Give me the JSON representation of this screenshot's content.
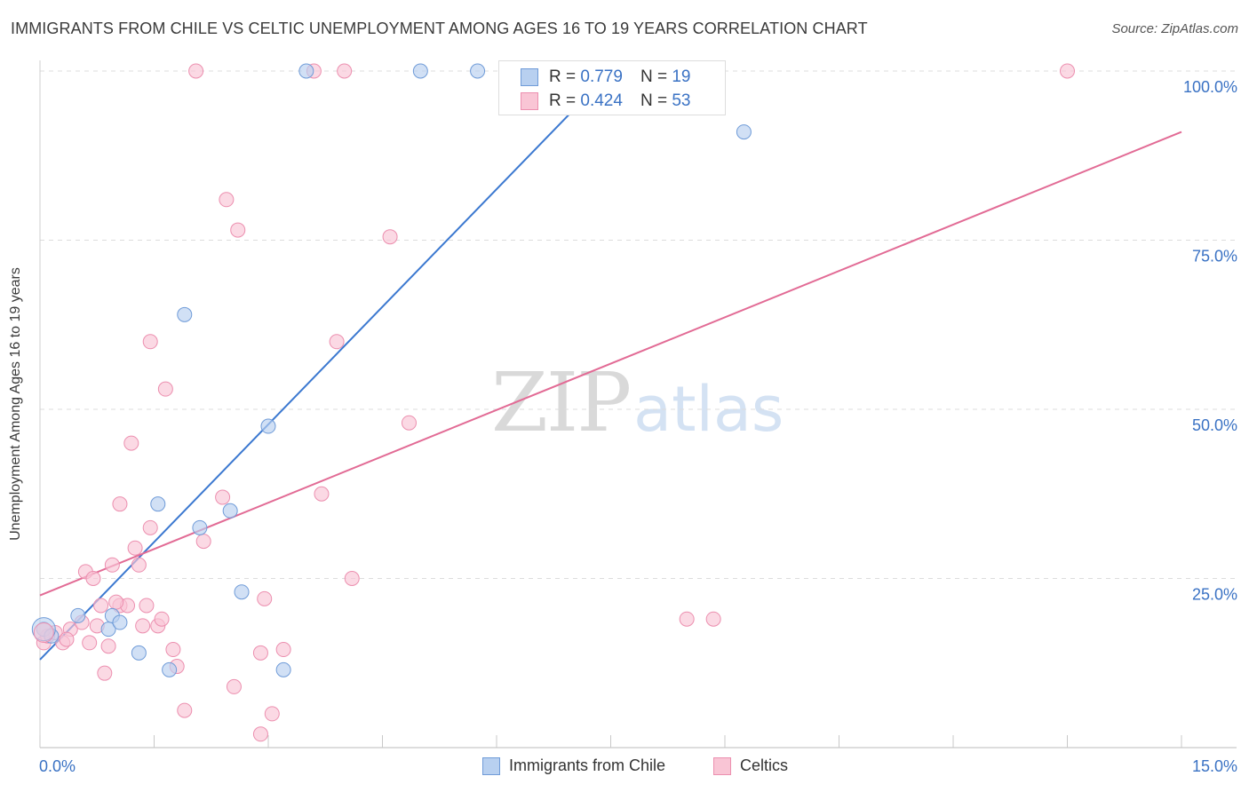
{
  "header": {
    "title": "IMMIGRANTS FROM CHILE VS CELTIC UNEMPLOYMENT AMONG AGES 16 TO 19 YEARS CORRELATION CHART",
    "source": "Source: ZipAtlas.com"
  },
  "watermark": {
    "zip": "ZIP",
    "atlas": "atlas"
  },
  "legend": {
    "series1": {
      "r_label": "R =",
      "r_value": "0.779",
      "n_label": "N =",
      "n_value": "19"
    },
    "series2": {
      "r_label": "R =",
      "r_value": "0.424",
      "n_label": "N =",
      "n_value": "53"
    }
  },
  "colors": {
    "blue_fill": "#b8d0f0",
    "blue_stroke": "#6f9bd8",
    "blue_line": "#3b78d0",
    "pink_fill": "#f9c5d5",
    "pink_stroke": "#ec8faf",
    "pink_line": "#e26b95",
    "grid": "#dcdcdc",
    "axis_text": "#3a72c4"
  },
  "chart_data": {
    "type": "scatter",
    "title": "IMMIGRANTS FROM CHILE VS CELTIC UNEMPLOYMENT AMONG AGES 16 TO 19 YEARS CORRELATION CHART",
    "xlabel": "",
    "ylabel": "Unemployment Among Ages 16 to 19 years",
    "xlim": [
      0,
      15
    ],
    "ylim": [
      0,
      100
    ],
    "x_tick_labels": [
      "0.0%",
      "15.0%"
    ],
    "y_ticks": [
      25,
      50,
      75,
      100
    ],
    "y_tick_labels": [
      "25.0%",
      "50.0%",
      "75.0%",
      "100.0%"
    ],
    "series": [
      {
        "name": "Immigrants from Chile",
        "color": "blue",
        "points": [
          [
            0.05,
            17.5
          ],
          [
            0.15,
            16.5
          ],
          [
            0.5,
            19.5
          ],
          [
            0.9,
            17.5
          ],
          [
            0.95,
            19.5
          ],
          [
            1.05,
            18.5
          ],
          [
            1.3,
            14.0
          ],
          [
            1.55,
            36.0
          ],
          [
            1.7,
            11.5
          ],
          [
            1.9,
            64.0
          ],
          [
            2.1,
            32.5
          ],
          [
            2.5,
            35.0
          ],
          [
            2.65,
            23.0
          ],
          [
            3.0,
            47.5
          ],
          [
            3.2,
            11.5
          ],
          [
            3.5,
            100.0
          ],
          [
            5.0,
            100.0
          ],
          [
            5.75,
            100.0
          ],
          [
            9.25,
            91.0
          ]
        ],
        "trendline": {
          "x": [
            0.0,
            7.55
          ],
          "y": [
            13.0,
            100.5
          ]
        }
      },
      {
        "name": "Celtics",
        "color": "pink",
        "points": [
          [
            0.05,
            15.5
          ],
          [
            0.1,
            16.5
          ],
          [
            0.2,
            17.0
          ],
          [
            0.3,
            15.5
          ],
          [
            0.4,
            17.5
          ],
          [
            0.55,
            18.5
          ],
          [
            0.6,
            26.0
          ],
          [
            0.7,
            25.0
          ],
          [
            0.75,
            18.0
          ],
          [
            0.8,
            21.0
          ],
          [
            0.85,
            11.0
          ],
          [
            0.9,
            15.0
          ],
          [
            0.95,
            27.0
          ],
          [
            1.05,
            21.0
          ],
          [
            1.05,
            36.0
          ],
          [
            1.15,
            21.0
          ],
          [
            1.2,
            45.0
          ],
          [
            1.25,
            29.5
          ],
          [
            1.3,
            27.0
          ],
          [
            1.35,
            18.0
          ],
          [
            1.45,
            32.5
          ],
          [
            1.45,
            60.0
          ],
          [
            1.55,
            18.0
          ],
          [
            1.6,
            19.0
          ],
          [
            1.65,
            53.0
          ],
          [
            1.75,
            14.5
          ],
          [
            1.8,
            12.0
          ],
          [
            1.9,
            5.5
          ],
          [
            2.05,
            100.0
          ],
          [
            2.15,
            30.5
          ],
          [
            2.4,
            37.0
          ],
          [
            2.45,
            81.0
          ],
          [
            2.55,
            9.0
          ],
          [
            2.6,
            76.5
          ],
          [
            2.9,
            2.0
          ],
          [
            2.95,
            22.0
          ],
          [
            3.05,
            5.0
          ],
          [
            3.2,
            14.5
          ],
          [
            3.6,
            100.0
          ],
          [
            3.7,
            37.5
          ],
          [
            3.9,
            60.0
          ],
          [
            4.0,
            100.0
          ],
          [
            4.1,
            25.0
          ],
          [
            4.6,
            75.5
          ],
          [
            4.85,
            48.0
          ],
          [
            8.5,
            19.0
          ],
          [
            8.85,
            19.0
          ],
          [
            13.5,
            100.0
          ],
          [
            0.35,
            16.0
          ],
          [
            0.65,
            15.5
          ],
          [
            1.0,
            21.5
          ],
          [
            2.9,
            14.0
          ],
          [
            1.4,
            21.0
          ]
        ],
        "trendline": {
          "x": [
            0.0,
            15.0
          ],
          "y": [
            22.5,
            91.0
          ]
        }
      }
    ]
  },
  "bottom_legend": {
    "items": [
      {
        "label": "Immigrants from Chile"
      },
      {
        "label": "Celtics"
      }
    ]
  }
}
